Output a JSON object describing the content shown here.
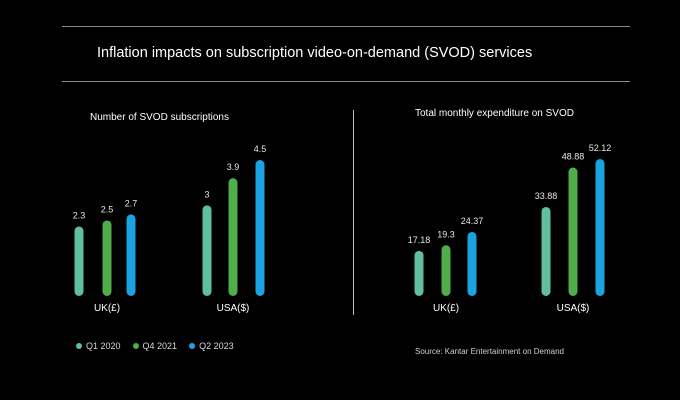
{
  "title": "Inflation impacts on subscription video-on-demand (SVOD) services",
  "colors": {
    "series": [
      "#5fbf9f",
      "#4fae4a",
      "#1aa3e0"
    ]
  },
  "chart_data": [
    {
      "type": "bar",
      "title": "Number of SVOD subscriptions",
      "categories": [
        "UK(£)",
        "USA($)"
      ],
      "series": [
        {
          "name": "Q1 2020",
          "values": [
            2.3,
            3
          ]
        },
        {
          "name": "Q4 2021",
          "values": [
            2.5,
            3.9
          ]
        },
        {
          "name": "Q2 2023",
          "values": [
            2.7,
            4.5
          ]
        }
      ],
      "value_labels": [
        [
          "2.3",
          "2.5",
          "2.7"
        ],
        [
          "3",
          "3.9",
          "4.5"
        ]
      ],
      "ylim": [
        0,
        4.5
      ]
    },
    {
      "type": "bar",
      "title": "Total monthly expenditure on SVOD",
      "categories": [
        "UK(£)",
        "USA($)"
      ],
      "series": [
        {
          "name": "Q1 2020",
          "values": [
            17.18,
            33.88
          ]
        },
        {
          "name": "Q4 2021",
          "values": [
            19.3,
            48.88
          ]
        },
        {
          "name": "Q2 2023",
          "values": [
            24.37,
            52.12
          ]
        }
      ],
      "value_labels": [
        [
          "17.18",
          "19.3",
          "24.37"
        ],
        [
          "33.88",
          "48.88",
          "52.12"
        ]
      ],
      "ylim": [
        0,
        52.12
      ]
    }
  ],
  "legend": [
    {
      "label": "Q1 2020"
    },
    {
      "label": "Q4 2021"
    },
    {
      "label": "Q2 2023"
    }
  ],
  "source": "Source: Kantar Entertainment on Demand"
}
